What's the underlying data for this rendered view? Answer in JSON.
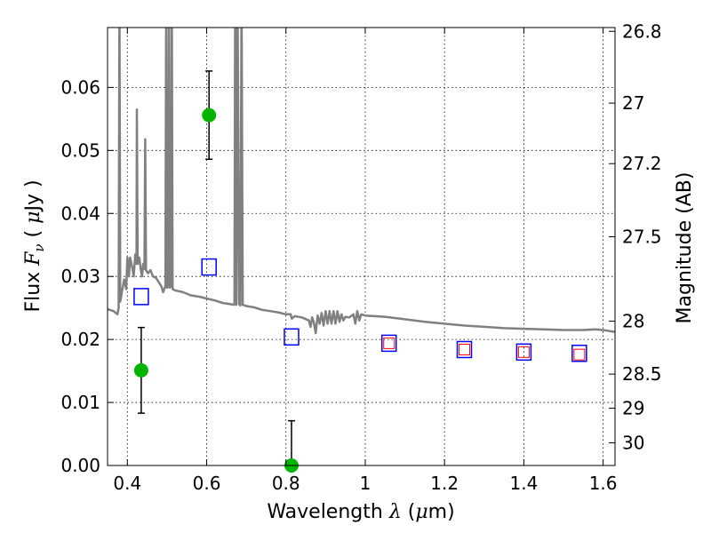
{
  "chart_data": {
    "type": "scatter",
    "xlabel": "Wavelength  λ (μm)",
    "ylabel": "Flux  F_ν  ( μJy )",
    "ylabel_parts": {
      "prefix": "Flux  ",
      "var": "F",
      "sub": "ν",
      "mid": "  ( ",
      "mu": "μ",
      "unit": "Jy )"
    },
    "xlabel_parts": {
      "prefix": "Wavelength  ",
      "var": "λ",
      "open": " (",
      "mu": "μ",
      "unit": "m)"
    },
    "ylabel_right": "Magnitude (AB)",
    "xlim": [
      0.35,
      1.63
    ],
    "ylim": [
      0.0,
      0.0695
    ],
    "xticks": [
      0.4,
      0.6,
      0.8,
      1.0,
      1.2,
      1.4,
      1.6
    ],
    "xtick_labels": [
      "0.4",
      "0.6",
      "0.8",
      "1",
      "1.2",
      "1.4",
      "1.6"
    ],
    "yticks": [
      0.0,
      0.01,
      0.02,
      0.03,
      0.04,
      0.05,
      0.06
    ],
    "ytick_labels": [
      "0.00",
      "0.01",
      "0.02",
      "0.03",
      "0.04",
      "0.05",
      "0.06"
    ],
    "mag_ticks": [
      {
        "label": "26.8",
        "flux": 0.0689
      },
      {
        "label": "27",
        "flux": 0.0575
      },
      {
        "label": "27.2",
        "flux": 0.0479
      },
      {
        "label": "27.5",
        "flux": 0.0363
      },
      {
        "label": "28",
        "flux": 0.0229
      },
      {
        "label": "28.5",
        "flux": 0.0145
      },
      {
        "label": "29",
        "flux": 0.0091
      },
      {
        "label": "30",
        "flux": 0.0036
      }
    ],
    "grid": true,
    "series": [
      {
        "kind": "template_line",
        "color": "#808080",
        "points": [
          [
            0.35,
            0.0248
          ],
          [
            0.365,
            0.0245
          ],
          [
            0.375,
            0.024
          ],
          [
            0.378,
            0.025
          ],
          [
            0.38,
            0.075
          ],
          [
            0.382,
            0.026
          ],
          [
            0.386,
            0.0275
          ],
          [
            0.392,
            0.0295
          ],
          [
            0.397,
            0.028
          ],
          [
            0.4,
            0.033
          ],
          [
            0.404,
            0.03
          ],
          [
            0.407,
            0.033
          ],
          [
            0.412,
            0.0315
          ],
          [
            0.416,
            0.03
          ],
          [
            0.42,
            0.0335
          ],
          [
            0.423,
            0.032
          ],
          [
            0.424,
            0.0565
          ],
          [
            0.426,
            0.032
          ],
          [
            0.43,
            0.033
          ],
          [
            0.434,
            0.031
          ],
          [
            0.437,
            0.03
          ],
          [
            0.44,
            0.032
          ],
          [
            0.443,
            0.0312
          ],
          [
            0.445,
            0.0518
          ],
          [
            0.447,
            0.031
          ],
          [
            0.452,
            0.0305
          ],
          [
            0.458,
            0.031
          ],
          [
            0.465,
            0.03
          ],
          [
            0.472,
            0.0298
          ],
          [
            0.48,
            0.029
          ],
          [
            0.486,
            0.0284
          ],
          [
            0.49,
            0.0275
          ],
          [
            0.496,
            0.0285
          ],
          [
            0.498,
            0.075
          ],
          [
            0.5,
            0.0282
          ],
          [
            0.503,
            0.0285
          ],
          [
            0.505,
            0.075
          ],
          [
            0.507,
            0.0282
          ],
          [
            0.51,
            0.0285
          ],
          [
            0.512,
            0.075
          ],
          [
            0.514,
            0.028
          ],
          [
            0.52,
            0.0278
          ],
          [
            0.54,
            0.0275
          ],
          [
            0.56,
            0.027
          ],
          [
            0.58,
            0.0268
          ],
          [
            0.6,
            0.0265
          ],
          [
            0.62,
            0.0262
          ],
          [
            0.64,
            0.0258
          ],
          [
            0.66,
            0.0256
          ],
          [
            0.67,
            0.0255
          ],
          [
            0.672,
            0.075
          ],
          [
            0.675,
            0.0255
          ],
          [
            0.678,
            0.075
          ],
          [
            0.682,
            0.0256
          ],
          [
            0.685,
            0.0254
          ],
          [
            0.688,
            0.075
          ],
          [
            0.691,
            0.0255
          ],
          [
            0.7,
            0.0253
          ],
          [
            0.72,
            0.0251
          ],
          [
            0.74,
            0.0247
          ],
          [
            0.76,
            0.0245
          ],
          [
            0.78,
            0.0243
          ],
          [
            0.8,
            0.024
          ],
          [
            0.812,
            0.024
          ],
          [
            0.815,
            0.0233
          ],
          [
            0.822,
            0.0237
          ],
          [
            0.84,
            0.0235
          ],
          [
            0.858,
            0.023
          ],
          [
            0.862,
            0.022
          ],
          [
            0.866,
            0.0235
          ],
          [
            0.87,
            0.0228
          ],
          [
            0.875,
            0.021
          ],
          [
            0.88,
            0.0238
          ],
          [
            0.885,
            0.0225
          ],
          [
            0.89,
            0.0242
          ],
          [
            0.895,
            0.0222
          ],
          [
            0.9,
            0.0245
          ],
          [
            0.905,
            0.0225
          ],
          [
            0.91,
            0.0245
          ],
          [
            0.915,
            0.0225
          ],
          [
            0.92,
            0.0245
          ],
          [
            0.925,
            0.0225
          ],
          [
            0.93,
            0.0245
          ],
          [
            0.935,
            0.0228
          ],
          [
            0.94,
            0.024
          ],
          [
            0.945,
            0.023
          ],
          [
            0.95,
            0.0236
          ],
          [
            0.96,
            0.0235
          ],
          [
            0.97,
            0.024
          ],
          [
            0.975,
            0.0225
          ],
          [
            0.98,
            0.0245
          ],
          [
            0.985,
            0.023
          ],
          [
            0.99,
            0.024
          ],
          [
            1.0,
            0.0238
          ],
          [
            1.05,
            0.0236
          ],
          [
            1.1,
            0.0232
          ],
          [
            1.15,
            0.0228
          ],
          [
            1.2,
            0.0225
          ],
          [
            1.25,
            0.0222
          ],
          [
            1.3,
            0.022
          ],
          [
            1.35,
            0.0218
          ],
          [
            1.4,
            0.0217
          ],
          [
            1.45,
            0.0216
          ],
          [
            1.5,
            0.0215
          ],
          [
            1.55,
            0.0215
          ],
          [
            1.58,
            0.0216
          ],
          [
            1.6,
            0.0215
          ],
          [
            1.63,
            0.0212
          ]
        ]
      },
      {
        "kind": "observed",
        "color": "#00b400",
        "points": [
          {
            "x": 0.435,
            "y": 0.0151,
            "err": 0.0068
          },
          {
            "x": 0.606,
            "y": 0.0556,
            "err": 0.007
          },
          {
            "x": 0.814,
            "y": 0.0,
            "err": 0.0071
          }
        ]
      },
      {
        "kind": "model_photometry",
        "color": "#0000ff",
        "points": [
          {
            "x": 0.435,
            "y": 0.0268
          },
          {
            "x": 0.606,
            "y": 0.0315
          },
          {
            "x": 0.814,
            "y": 0.0204
          },
          {
            "x": 1.06,
            "y": 0.0194
          },
          {
            "x": 1.25,
            "y": 0.0184
          },
          {
            "x": 1.4,
            "y": 0.018
          },
          {
            "x": 1.54,
            "y": 0.0178
          }
        ]
      },
      {
        "kind": "model_photometry_small",
        "color": "#ff0000",
        "points": [
          {
            "x": 1.06,
            "y": 0.0194
          },
          {
            "x": 1.25,
            "y": 0.0184
          },
          {
            "x": 1.4,
            "y": 0.018
          },
          {
            "x": 1.54,
            "y": 0.0176
          }
        ]
      }
    ]
  }
}
